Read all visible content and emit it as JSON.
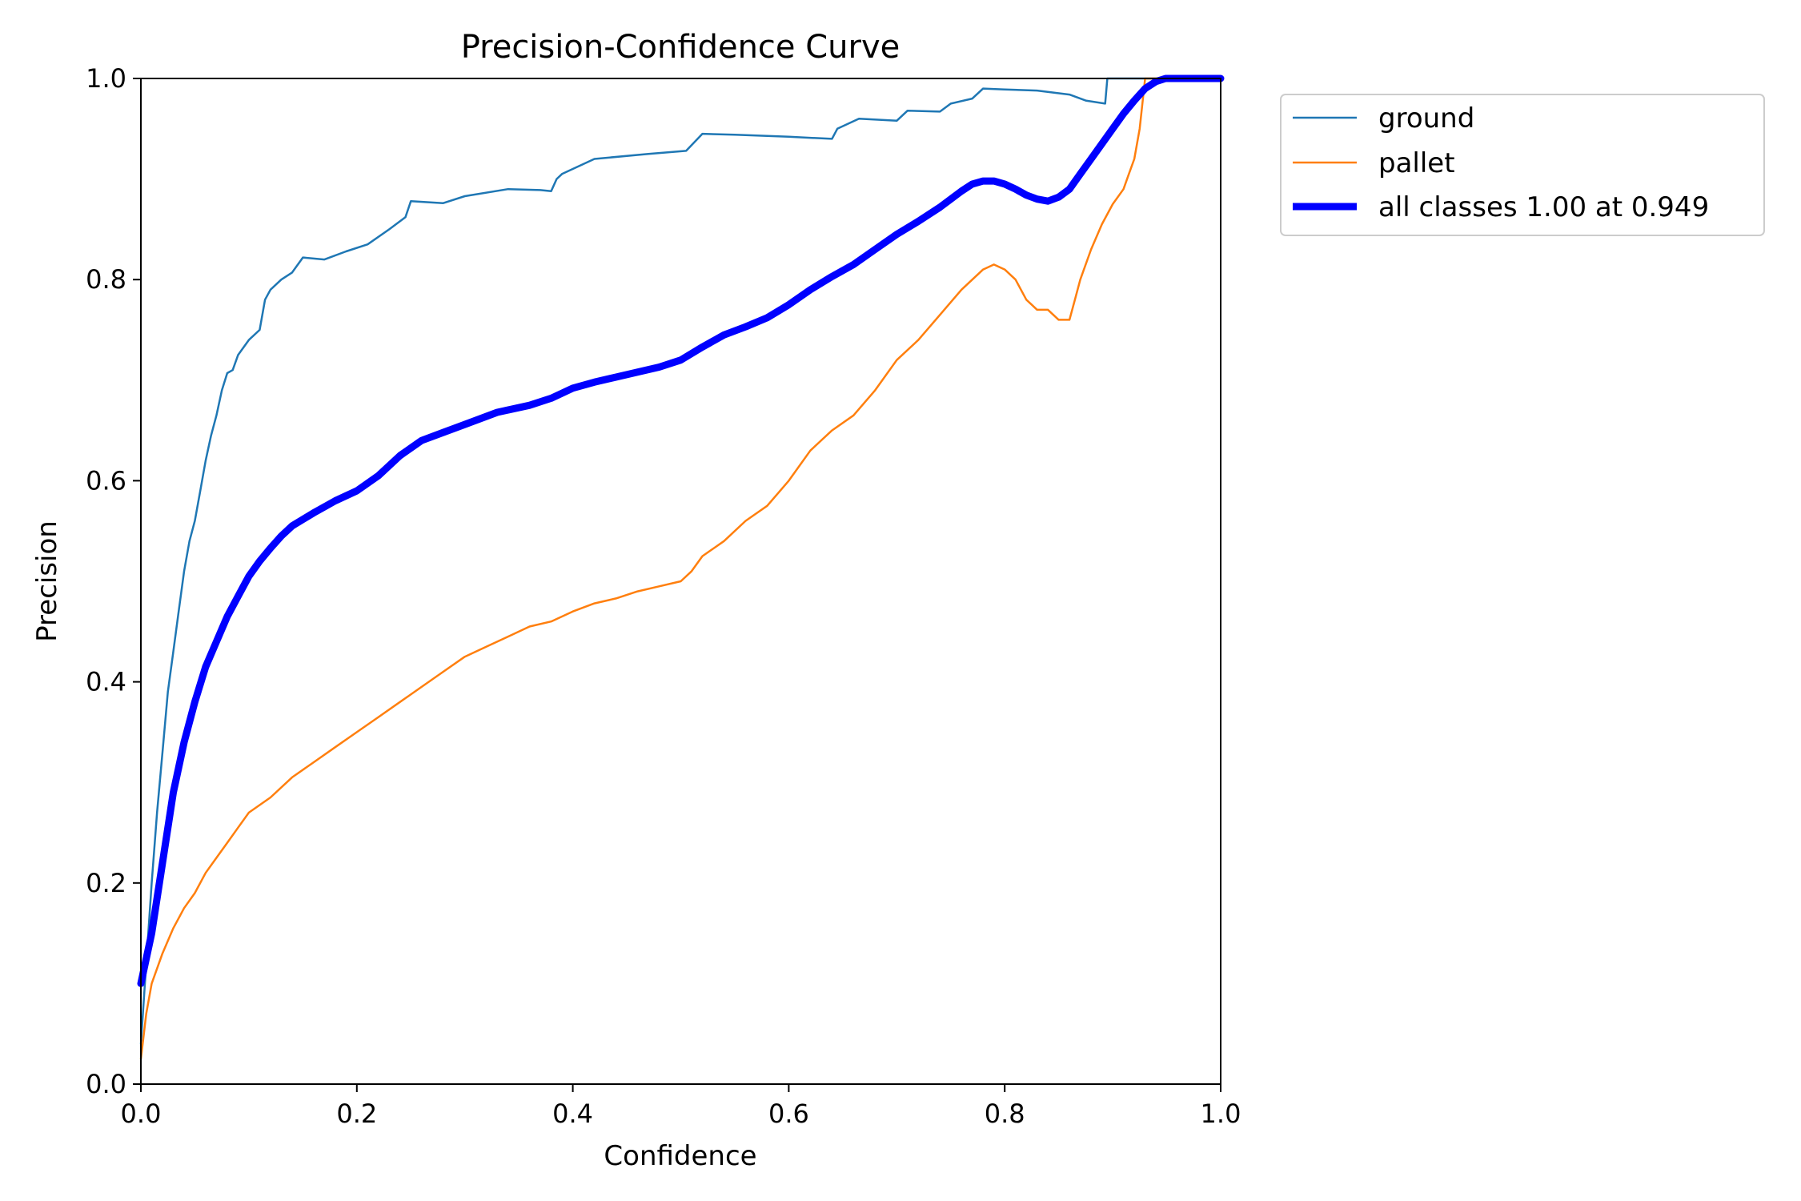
{
  "chart_data": {
    "type": "line",
    "title": "Precision-Confidence Curve",
    "xlabel": "Confidence",
    "ylabel": "Precision",
    "xlim": [
      0,
      1
    ],
    "ylim": [
      0,
      1
    ],
    "xticks": [
      "0.0",
      "0.2",
      "0.4",
      "0.6",
      "0.8",
      "1.0"
    ],
    "yticks": [
      "0.0",
      "0.2",
      "0.4",
      "0.6",
      "0.8",
      "1.0"
    ],
    "grid": false,
    "legend_position": "outside-top-right",
    "series": [
      {
        "name": "ground",
        "color": "#1f77b4",
        "width": "thin",
        "points": [
          [
            0.0,
            0.04
          ],
          [
            0.005,
            0.12
          ],
          [
            0.01,
            0.2
          ],
          [
            0.015,
            0.27
          ],
          [
            0.02,
            0.33
          ],
          [
            0.025,
            0.39
          ],
          [
            0.03,
            0.43
          ],
          [
            0.035,
            0.47
          ],
          [
            0.04,
            0.51
          ],
          [
            0.045,
            0.54
          ],
          [
            0.05,
            0.56
          ],
          [
            0.055,
            0.59
          ],
          [
            0.06,
            0.62
          ],
          [
            0.065,
            0.645
          ],
          [
            0.07,
            0.665
          ],
          [
            0.075,
            0.69
          ],
          [
            0.08,
            0.707
          ],
          [
            0.085,
            0.71
          ],
          [
            0.09,
            0.725
          ],
          [
            0.1,
            0.74
          ],
          [
            0.11,
            0.75
          ],
          [
            0.115,
            0.78
          ],
          [
            0.12,
            0.79
          ],
          [
            0.13,
            0.8
          ],
          [
            0.14,
            0.807
          ],
          [
            0.15,
            0.822
          ],
          [
            0.17,
            0.82
          ],
          [
            0.19,
            0.828
          ],
          [
            0.21,
            0.835
          ],
          [
            0.23,
            0.85
          ],
          [
            0.245,
            0.862
          ],
          [
            0.25,
            0.878
          ],
          [
            0.28,
            0.876
          ],
          [
            0.3,
            0.883
          ],
          [
            0.34,
            0.89
          ],
          [
            0.37,
            0.889
          ],
          [
            0.38,
            0.888
          ],
          [
            0.385,
            0.9
          ],
          [
            0.39,
            0.905
          ],
          [
            0.42,
            0.92
          ],
          [
            0.47,
            0.925
          ],
          [
            0.505,
            0.928
          ],
          [
            0.52,
            0.945
          ],
          [
            0.55,
            0.944
          ],
          [
            0.6,
            0.942
          ],
          [
            0.64,
            0.94
          ],
          [
            0.645,
            0.95
          ],
          [
            0.665,
            0.96
          ],
          [
            0.7,
            0.958
          ],
          [
            0.71,
            0.968
          ],
          [
            0.74,
            0.967
          ],
          [
            0.75,
            0.975
          ],
          [
            0.77,
            0.98
          ],
          [
            0.78,
            0.99
          ],
          [
            0.8,
            0.989
          ],
          [
            0.83,
            0.988
          ],
          [
            0.86,
            0.984
          ],
          [
            0.875,
            0.978
          ],
          [
            0.893,
            0.975
          ],
          [
            0.895,
            1.0
          ],
          [
            1.0,
            1.0
          ]
        ]
      },
      {
        "name": "pallet",
        "color": "#ff7f0e",
        "width": "thin",
        "points": [
          [
            0.0,
            0.025
          ],
          [
            0.005,
            0.07
          ],
          [
            0.01,
            0.1
          ],
          [
            0.02,
            0.13
          ],
          [
            0.03,
            0.155
          ],
          [
            0.04,
            0.175
          ],
          [
            0.05,
            0.19
          ],
          [
            0.06,
            0.21
          ],
          [
            0.07,
            0.225
          ],
          [
            0.08,
            0.24
          ],
          [
            0.09,
            0.255
          ],
          [
            0.1,
            0.27
          ],
          [
            0.12,
            0.285
          ],
          [
            0.14,
            0.305
          ],
          [
            0.16,
            0.32
          ],
          [
            0.18,
            0.335
          ],
          [
            0.2,
            0.35
          ],
          [
            0.22,
            0.365
          ],
          [
            0.24,
            0.38
          ],
          [
            0.26,
            0.395
          ],
          [
            0.28,
            0.41
          ],
          [
            0.3,
            0.425
          ],
          [
            0.32,
            0.435
          ],
          [
            0.34,
            0.445
          ],
          [
            0.36,
            0.455
          ],
          [
            0.38,
            0.46
          ],
          [
            0.4,
            0.47
          ],
          [
            0.42,
            0.478
          ],
          [
            0.44,
            0.483
          ],
          [
            0.46,
            0.49
          ],
          [
            0.48,
            0.495
          ],
          [
            0.5,
            0.5
          ],
          [
            0.51,
            0.51
          ],
          [
            0.52,
            0.525
          ],
          [
            0.54,
            0.54
          ],
          [
            0.56,
            0.56
          ],
          [
            0.58,
            0.575
          ],
          [
            0.6,
            0.6
          ],
          [
            0.62,
            0.63
          ],
          [
            0.64,
            0.65
          ],
          [
            0.66,
            0.665
          ],
          [
            0.68,
            0.69
          ],
          [
            0.7,
            0.72
          ],
          [
            0.72,
            0.74
          ],
          [
            0.74,
            0.765
          ],
          [
            0.76,
            0.79
          ],
          [
            0.78,
            0.81
          ],
          [
            0.79,
            0.815
          ],
          [
            0.8,
            0.81
          ],
          [
            0.81,
            0.8
          ],
          [
            0.82,
            0.78
          ],
          [
            0.83,
            0.77
          ],
          [
            0.84,
            0.77
          ],
          [
            0.85,
            0.76
          ],
          [
            0.86,
            0.76
          ],
          [
            0.865,
            0.78
          ],
          [
            0.87,
            0.8
          ],
          [
            0.88,
            0.83
          ],
          [
            0.89,
            0.855
          ],
          [
            0.9,
            0.875
          ],
          [
            0.91,
            0.89
          ],
          [
            0.915,
            0.905
          ],
          [
            0.92,
            0.92
          ],
          [
            0.925,
            0.95
          ],
          [
            0.93,
            1.0
          ],
          [
            1.0,
            1.0
          ]
        ]
      },
      {
        "name": "all classes 1.00 at 0.949",
        "color": "#0000ff",
        "width": "thick",
        "points": [
          [
            0.0,
            0.1
          ],
          [
            0.01,
            0.15
          ],
          [
            0.02,
            0.22
          ],
          [
            0.03,
            0.29
          ],
          [
            0.04,
            0.34
          ],
          [
            0.05,
            0.38
          ],
          [
            0.06,
            0.415
          ],
          [
            0.07,
            0.44
          ],
          [
            0.08,
            0.465
          ],
          [
            0.09,
            0.485
          ],
          [
            0.1,
            0.505
          ],
          [
            0.11,
            0.52
          ],
          [
            0.12,
            0.533
          ],
          [
            0.13,
            0.545
          ],
          [
            0.14,
            0.555
          ],
          [
            0.16,
            0.568
          ],
          [
            0.18,
            0.58
          ],
          [
            0.2,
            0.59
          ],
          [
            0.22,
            0.605
          ],
          [
            0.24,
            0.625
          ],
          [
            0.26,
            0.64
          ],
          [
            0.28,
            0.648
          ],
          [
            0.3,
            0.656
          ],
          [
            0.33,
            0.668
          ],
          [
            0.36,
            0.675
          ],
          [
            0.38,
            0.682
          ],
          [
            0.4,
            0.692
          ],
          [
            0.42,
            0.698
          ],
          [
            0.44,
            0.703
          ],
          [
            0.46,
            0.708
          ],
          [
            0.48,
            0.713
          ],
          [
            0.5,
            0.72
          ],
          [
            0.52,
            0.733
          ],
          [
            0.54,
            0.745
          ],
          [
            0.56,
            0.753
          ],
          [
            0.58,
            0.762
          ],
          [
            0.6,
            0.775
          ],
          [
            0.62,
            0.79
          ],
          [
            0.64,
            0.803
          ],
          [
            0.66,
            0.815
          ],
          [
            0.68,
            0.83
          ],
          [
            0.7,
            0.845
          ],
          [
            0.72,
            0.858
          ],
          [
            0.74,
            0.872
          ],
          [
            0.76,
            0.888
          ],
          [
            0.77,
            0.895
          ],
          [
            0.78,
            0.898
          ],
          [
            0.79,
            0.898
          ],
          [
            0.8,
            0.895
          ],
          [
            0.81,
            0.89
          ],
          [
            0.82,
            0.884
          ],
          [
            0.83,
            0.88
          ],
          [
            0.84,
            0.878
          ],
          [
            0.85,
            0.882
          ],
          [
            0.86,
            0.89
          ],
          [
            0.87,
            0.905
          ],
          [
            0.88,
            0.92
          ],
          [
            0.89,
            0.935
          ],
          [
            0.9,
            0.95
          ],
          [
            0.91,
            0.965
          ],
          [
            0.92,
            0.978
          ],
          [
            0.93,
            0.99
          ],
          [
            0.94,
            0.997
          ],
          [
            0.949,
            1.0
          ],
          [
            1.0,
            1.0
          ]
        ]
      }
    ]
  }
}
